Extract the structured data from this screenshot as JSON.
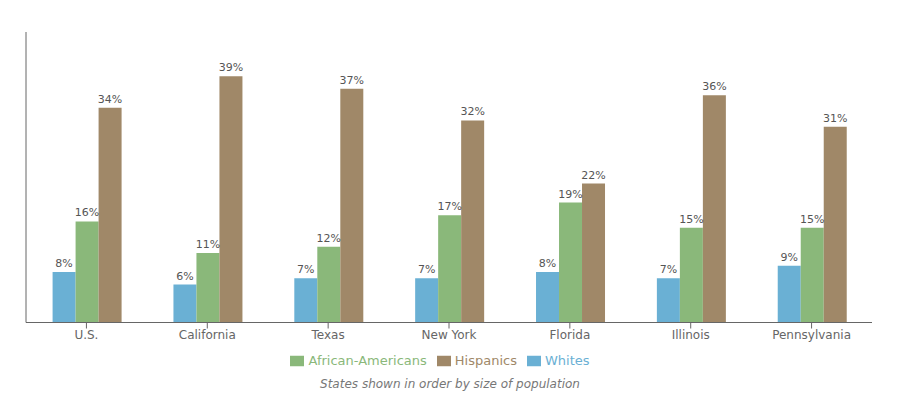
{
  "chart_data": {
    "type": "bar",
    "subtitle": "States shown in order by size of population",
    "categories": [
      "U.S.",
      "California",
      "Texas",
      "New York",
      "Florida",
      "Illinois",
      "Pennsylvania"
    ],
    "series": [
      {
        "name": "Whites",
        "color": "#6ab0d4",
        "values": [
          8,
          6,
          7,
          7,
          8,
          7,
          9
        ],
        "value_labels": [
          "8%",
          "6%",
          "7%",
          "7%",
          "8%",
          "7%",
          "9%"
        ]
      },
      {
        "name": "African-Americans",
        "color": "#8ab87a",
        "values": [
          16,
          11,
          12,
          17,
          19,
          15,
          15
        ],
        "value_labels": [
          "16%",
          "11%",
          "12%",
          "17%",
          "19%",
          "15%",
          "15%"
        ]
      },
      {
        "name": "Hispanics",
        "color": "#a08868",
        "values": [
          34,
          39,
          37,
          32,
          22,
          36,
          31
        ],
        "value_labels": [
          "34%",
          "39%",
          "37%",
          "32%",
          "22%",
          "36%",
          "31%"
        ]
      }
    ],
    "ylim": [
      0,
      46
    ],
    "grid": false,
    "legend": "bottom",
    "data_labels": true,
    "tick_labels": "x"
  }
}
